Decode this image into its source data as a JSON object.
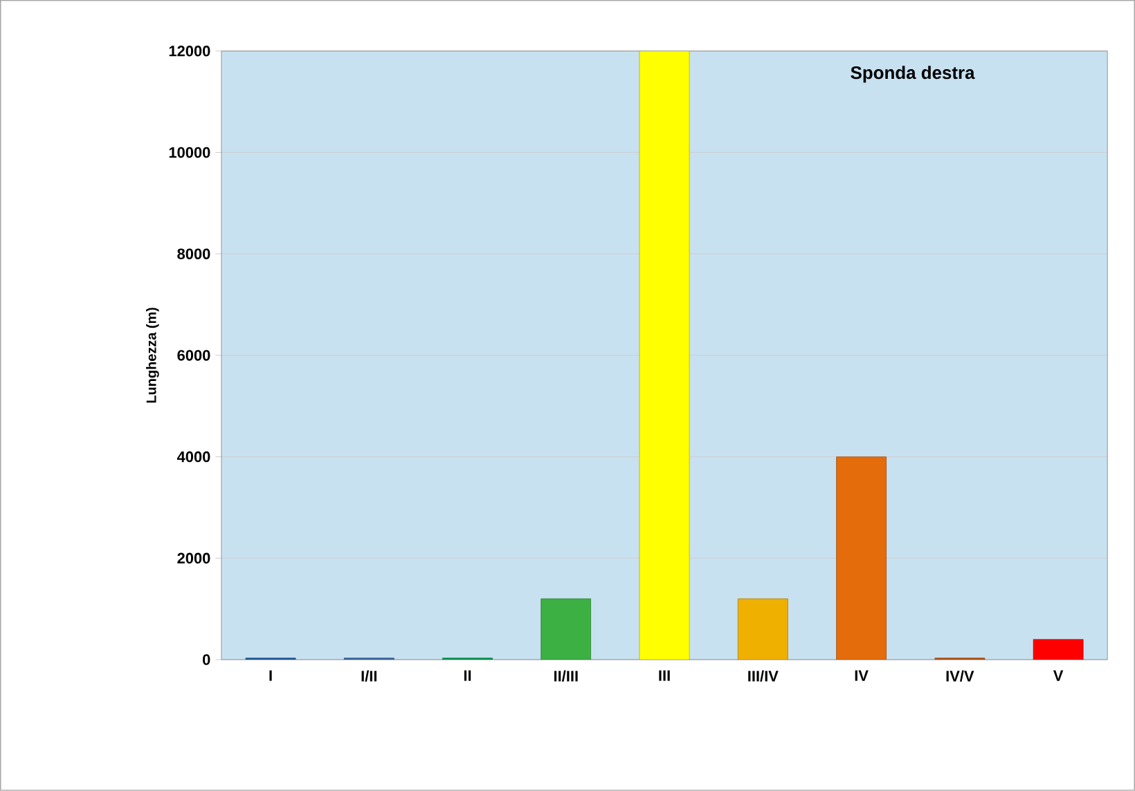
{
  "chart_data": {
    "type": "bar",
    "title": "Sponda destra",
    "ylabel": "Lunghezza (m)",
    "categories": [
      "I",
      "I/II",
      "II",
      "II/III",
      "III",
      "III/IV",
      "IV",
      "IV/V",
      "V"
    ],
    "values": [
      30,
      30,
      30,
      1200,
      12000,
      1200,
      4000,
      30,
      400
    ],
    "colors": [
      "#1f5fa8",
      "#3a6aa8",
      "#00a050",
      "#3cb043",
      "#ffff00",
      "#f0b000",
      "#e46c0a",
      "#c0560a",
      "#ff0000"
    ],
    "ylim": [
      0,
      12000
    ],
    "yticks": [
      0,
      2000,
      4000,
      6000,
      8000,
      10000,
      12000
    ],
    "grid": "y"
  }
}
